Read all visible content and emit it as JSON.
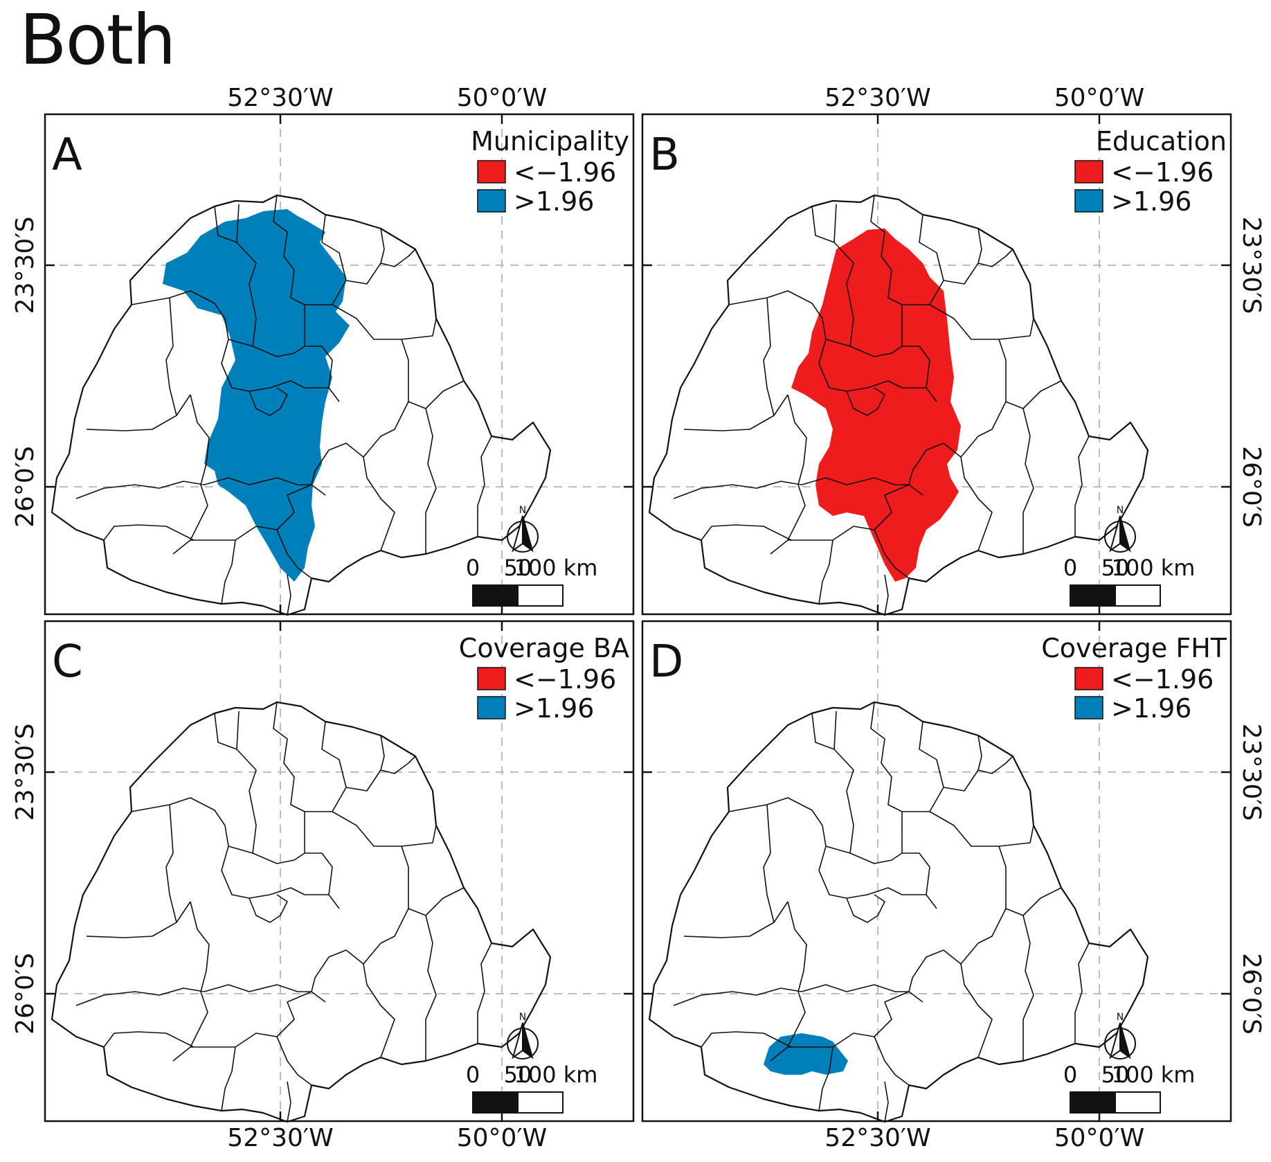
{
  "figure_title": "Both",
  "axes": {
    "x_ticks": [
      "52°30′W",
      "50°0′W"
    ],
    "y_ticks": [
      "23°30′S",
      "26°0′S"
    ]
  },
  "scale_bar": {
    "labels": [
      "0",
      "50",
      "100 km"
    ]
  },
  "north_arrow": {
    "label": "N"
  },
  "legend_classes": [
    {
      "label": "<−1.96",
      "color": "#ee1c1c"
    },
    {
      "label": ">1.96",
      "color": "#0080bb"
    }
  ],
  "panels": [
    {
      "letter": "A",
      "legend_title": "Municipality",
      "highlight": "blue-central",
      "fill": "#0080bb"
    },
    {
      "letter": "B",
      "legend_title": "Education",
      "highlight": "red-central",
      "fill": "#ee1c1c"
    },
    {
      "letter": "C",
      "legend_title": "Coverage BA",
      "highlight": "none",
      "fill": ""
    },
    {
      "letter": "D",
      "legend_title": "Coverage FHT",
      "highlight": "blue-south",
      "fill": "#0080bb"
    }
  ]
}
